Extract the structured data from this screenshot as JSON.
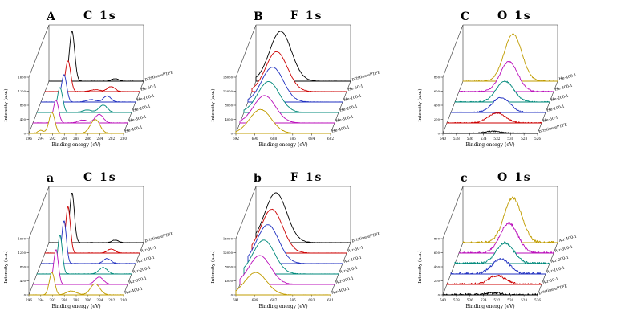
{
  "figure": {
    "background": "#ffffff",
    "description": "Six-panel 3D waterfall XPS spectra figure (C 1s, F 1s, O 1s) for He-plasma (top row A,B,C) and Air-plasma (bottom row a,b,c) treated ePTFE samples"
  },
  "chart_data": [
    {
      "panel": "A",
      "type": "line",
      "title": "C 1s",
      "xlabel": "Binding energy (eV)",
      "ylabel": "Intensity (a.u.)",
      "x_left": 296,
      "x_right": 280,
      "x_ticks": [
        296,
        294,
        292,
        290,
        288,
        286,
        284,
        282,
        280
      ],
      "y_ticks": [
        "0",
        "400",
        "800",
        "1200",
        "1600"
      ],
      "noise": 0.005,
      "series": [
        {
          "name": "pristine ePTFE",
          "color": "#000000",
          "peaks": [
            [
              292.1,
              1.0,
              0.45
            ],
            [
              284.8,
              0.05,
              0.6
            ]
          ]
        },
        {
          "name": "He-50-1",
          "color": "#cc0000",
          "peaks": [
            [
              292.1,
              0.62,
              0.45
            ],
            [
              284.8,
              0.1,
              0.65
            ],
            [
              287.5,
              0.04,
              0.8
            ]
          ]
        },
        {
          "name": "He-100-1",
          "color": "#2030c0",
          "peaks": [
            [
              292.1,
              0.55,
              0.45
            ],
            [
              284.8,
              0.12,
              0.65
            ],
            [
              287.5,
              0.05,
              0.8
            ]
          ]
        },
        {
          "name": "He-200-1",
          "color": "#00897b",
          "peaks": [
            [
              292.1,
              0.5,
              0.45
            ],
            [
              284.8,
              0.15,
              0.7
            ],
            [
              287.5,
              0.05,
              0.8
            ]
          ]
        },
        {
          "name": "He-300-1",
          "color": "#bb10bb",
          "peaks": [
            [
              292.1,
              0.46,
              0.45
            ],
            [
              284.8,
              0.17,
              0.7
            ],
            [
              287.5,
              0.06,
              0.8
            ]
          ]
        },
        {
          "name": "He-400-1",
          "color": "#c09c00",
          "peaks": [
            [
              292.1,
              0.42,
              0.5
            ],
            [
              284.8,
              0.28,
              0.8
            ],
            [
              294.0,
              0.06,
              0.5
            ]
          ]
        }
      ]
    },
    {
      "panel": "B",
      "type": "line",
      "title": "F 1s",
      "xlabel": "Binding energy (eV)",
      "ylabel": "Intensity (a.u.)",
      "x_left": 692,
      "x_right": 682,
      "x_ticks": [
        692,
        690,
        688,
        686,
        684,
        682
      ],
      "y_ticks": [
        "0",
        "4000",
        "8000",
        "12000",
        "16000"
      ],
      "noise": 0.004,
      "series": [
        {
          "name": "pristine ePTFE",
          "color": "#000000",
          "peaks": [
            [
              689.4,
              1.0,
              1.15
            ]
          ]
        },
        {
          "name": "He-50-1",
          "color": "#cc0000",
          "peaks": [
            [
              689.4,
              0.8,
              1.15
            ]
          ]
        },
        {
          "name": "He-100-1",
          "color": "#2030c0",
          "peaks": [
            [
              689.4,
              0.7,
              1.15
            ]
          ]
        },
        {
          "name": "He-200-1",
          "color": "#00897b",
          "peaks": [
            [
              689.4,
              0.62,
              1.15
            ]
          ]
        },
        {
          "name": "He-300-1",
          "color": "#bb10bb",
          "peaks": [
            [
              689.4,
              0.55,
              1.15
            ]
          ]
        },
        {
          "name": "He-400-1",
          "color": "#c09c00",
          "peaks": [
            [
              689.4,
              0.48,
              1.15
            ]
          ]
        }
      ]
    },
    {
      "panel": "C",
      "type": "line",
      "title": "O 1s",
      "xlabel": "Binding energy (eV)",
      "ylabel": "Intensity (a.u.)",
      "x_left": 540,
      "x_right": 526,
      "x_ticks": [
        540,
        538,
        536,
        534,
        532,
        530,
        528,
        526
      ],
      "y_ticks": [
        "0",
        "200",
        "400",
        "600",
        "800"
      ],
      "noise": 0.012,
      "series": [
        {
          "name": "He-400-1",
          "color": "#c09c00",
          "peaks": [
            [
              532.6,
              0.95,
              1.3
            ]
          ]
        },
        {
          "name": "He-300-1",
          "color": "#bb10bb",
          "peaks": [
            [
              532.6,
              0.6,
              1.3
            ]
          ]
        },
        {
          "name": "He-200-1",
          "color": "#00897b",
          "peaks": [
            [
              532.6,
              0.42,
              1.3
            ]
          ]
        },
        {
          "name": "He-100-1",
          "color": "#2030c0",
          "peaks": [
            [
              532.6,
              0.3,
              1.3
            ]
          ]
        },
        {
          "name": "He-50-1",
          "color": "#cc0000",
          "peaks": [
            [
              532.6,
              0.2,
              1.3
            ]
          ]
        },
        {
          "name": "pristine ePTFE",
          "color": "#000000",
          "peaks": [
            [
              532.6,
              0.04,
              1.3
            ]
          ]
        }
      ]
    },
    {
      "panel": "a",
      "type": "line",
      "title": "C 1s",
      "xlabel": "Binding energy (eV)",
      "ylabel": "Intensity (a.u.)",
      "x_left": 296,
      "x_right": 280,
      "x_ticks": [
        296,
        294,
        292,
        290,
        288,
        286,
        284,
        282,
        280
      ],
      "y_ticks": [
        "0",
        "400",
        "800",
        "1200",
        "1600"
      ],
      "noise": 0.005,
      "series": [
        {
          "name": "pristine ePTFE",
          "color": "#000000",
          "peaks": [
            [
              292.1,
              1.0,
              0.4
            ],
            [
              284.8,
              0.05,
              0.6
            ]
          ]
        },
        {
          "name": "Air-50-1",
          "color": "#cc0000",
          "peaks": [
            [
              292.1,
              0.93,
              0.4
            ],
            [
              284.8,
              0.08,
              0.65
            ]
          ]
        },
        {
          "name": "Air-100-1",
          "color": "#2030c0",
          "peaks": [
            [
              292.1,
              0.86,
              0.4
            ],
            [
              284.8,
              0.1,
              0.65
            ]
          ]
        },
        {
          "name": "Air-200-1",
          "color": "#00897b",
          "peaks": [
            [
              292.1,
              0.78,
              0.4
            ],
            [
              284.8,
              0.13,
              0.7
            ]
          ]
        },
        {
          "name": "Air-300-1",
          "color": "#bb10bb",
          "peaks": [
            [
              292.1,
              0.7,
              0.4
            ],
            [
              284.8,
              0.15,
              0.7
            ]
          ]
        },
        {
          "name": "Air-400-1",
          "color": "#c09c00",
          "peaks": [
            [
              292.1,
              0.45,
              0.45
            ],
            [
              284.8,
              0.22,
              0.8
            ],
            [
              288.8,
              0.08,
              0.8
            ]
          ]
        }
      ]
    },
    {
      "panel": "b",
      "type": "line",
      "title": "F 1s",
      "xlabel": "Binding energy (eV)",
      "ylabel": "Intensity (a.u.)",
      "x_left": 691,
      "x_right": 681,
      "x_ticks": [
        691,
        689,
        687,
        685,
        683,
        681
      ],
      "y_ticks": [
        "0",
        "4000",
        "8000",
        "12000",
        "16000"
      ],
      "noise": 0.004,
      "series": [
        {
          "name": "pristine ePTFE",
          "color": "#000000",
          "peaks": [
            [
              688.9,
              1.0,
              1.15
            ]
          ]
        },
        {
          "name": "Air-50-1",
          "color": "#cc0000",
          "peaks": [
            [
              688.9,
              0.88,
              1.15
            ]
          ]
        },
        {
          "name": "Air-100-1",
          "color": "#2030c0",
          "peaks": [
            [
              688.9,
              0.78,
              1.15
            ]
          ]
        },
        {
          "name": "Air-200-1",
          "color": "#00897b",
          "peaks": [
            [
              688.9,
              0.68,
              1.15
            ]
          ]
        },
        {
          "name": "Air-300-1",
          "color": "#bb10bb",
          "peaks": [
            [
              688.9,
              0.58,
              1.15
            ]
          ]
        },
        {
          "name": "Air-400-1",
          "color": "#c09c00",
          "peaks": [
            [
              688.9,
              0.45,
              1.15
            ]
          ]
        }
      ]
    },
    {
      "panel": "c",
      "type": "line",
      "title": "O 1s",
      "xlabel": "Binding energy (eV)",
      "ylabel": "Intensity (a.u.)",
      "x_left": 540,
      "x_right": 526,
      "x_ticks": [
        540,
        538,
        536,
        534,
        532,
        530,
        528,
        526
      ],
      "y_ticks": [
        "0",
        "200",
        "400",
        "600",
        "800"
      ],
      "noise": 0.025,
      "series": [
        {
          "name": "Air-400-1",
          "color": "#c09c00",
          "peaks": [
            [
              532.6,
              0.9,
              1.3
            ]
          ]
        },
        {
          "name": "Air-300-1",
          "color": "#bb10bb",
          "peaks": [
            [
              532.6,
              0.6,
              1.3
            ]
          ]
        },
        {
          "name": "Air-200-1",
          "color": "#00897b",
          "peaks": [
            [
              532.6,
              0.42,
              1.3
            ]
          ]
        },
        {
          "name": "Air-100-1",
          "color": "#2030c0",
          "peaks": [
            [
              532.6,
              0.3,
              1.3
            ]
          ]
        },
        {
          "name": "Air-50-1",
          "color": "#cc0000",
          "peaks": [
            [
              532.6,
              0.18,
              1.3
            ]
          ]
        },
        {
          "name": "pristine ePTFE",
          "color": "#000000",
          "peaks": [
            [
              532.6,
              0.04,
              1.3
            ]
          ]
        }
      ]
    }
  ]
}
